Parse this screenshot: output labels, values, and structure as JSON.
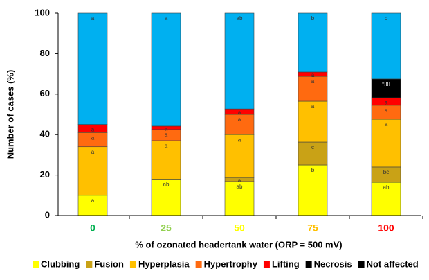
{
  "chart_data": {
    "type": "stacked_bar",
    "x_label": "% of ozonated headertank water (ORP = 500 mV)",
    "y_label": "Number of cases (%)",
    "categories": [
      "0",
      "25",
      "50",
      "75",
      "100"
    ],
    "category_colors": [
      "#00b050",
      "#92d050",
      "#ffff00",
      "#ffc000",
      "#ff0000"
    ],
    "ylim": [
      0,
      100
    ],
    "yticks": [
      0,
      20,
      40,
      60,
      80,
      100
    ],
    "legend": "bottom",
    "series": [
      {
        "name": "Clubbing",
        "color": "#ffff00",
        "values": [
          10,
          18,
          16.8,
          25,
          16.4
        ],
        "labels": [
          "a",
          "ab",
          "ab",
          "b",
          "ab"
        ]
      },
      {
        "name": "Fusion",
        "color": "#c9a216",
        "values": [
          0,
          0,
          2,
          11.3,
          7.6
        ],
        "labels": [
          null,
          null,
          "a",
          "c",
          "bc"
        ]
      },
      {
        "name": "Hyperplasia",
        "color": "#ffc000",
        "values": [
          24,
          19,
          21.2,
          20.2,
          23.6
        ],
        "labels": [
          "a",
          "a",
          "a",
          "a",
          "a"
        ]
      },
      {
        "name": "Hypertrophy",
        "color": "#ff6a10",
        "values": [
          7,
          5.5,
          10,
          12.3,
          6.9
        ],
        "labels": [
          "a",
          "a",
          "a",
          "a",
          "a"
        ]
      },
      {
        "name": "Lifting",
        "color": "#ff0000",
        "values": [
          4,
          1.7,
          2.7,
          2.1,
          3.7
        ],
        "labels": [
          "a",
          "a",
          "a",
          "a",
          "a"
        ]
      },
      {
        "name": "Necrosis",
        "color": "#000000",
        "values": [
          0,
          0,
          0,
          0,
          9.3
        ],
        "labels": [
          null,
          null,
          null,
          null,
          "*!!!!"
        ]
      },
      {
        "name": "Not affected",
        "color": "#00b0f0",
        "legend_color": "#000000",
        "values": [
          55,
          55.8,
          47.3,
          29.1,
          32.5
        ],
        "labels": [
          "a",
          "a",
          "ab",
          "b",
          "b"
        ]
      }
    ]
  }
}
